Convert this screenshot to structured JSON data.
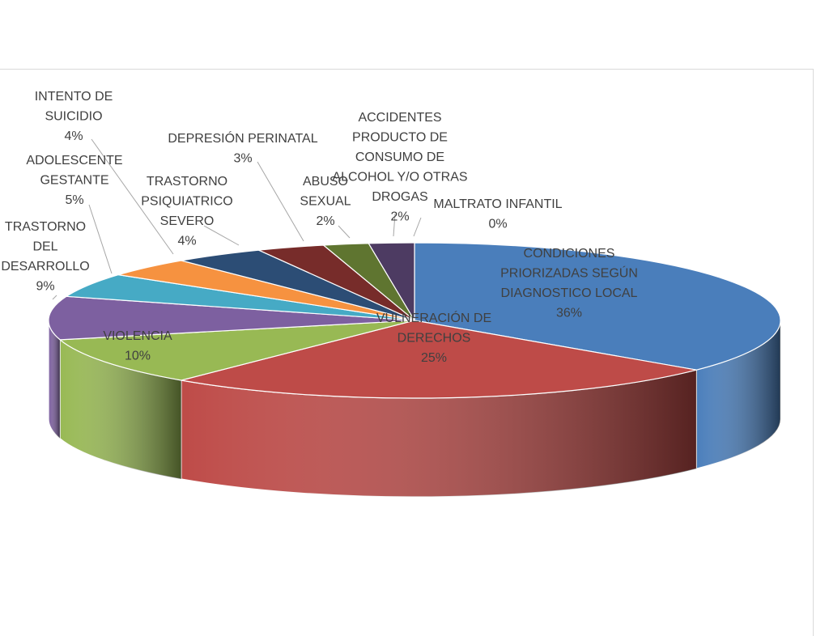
{
  "chart_data": {
    "type": "pie",
    "three_d": true,
    "title": "",
    "slices": [
      {
        "label": [
          "CONDICIONES",
          "PRIORIZADAS SEGÚN",
          "DIAGNOSTICO LOCAL"
        ],
        "pct_text": "36%",
        "value": 36,
        "color": "#4a7ebb"
      },
      {
        "label": [
          "VULNERACIÓN DE",
          "DERECHOS"
        ],
        "pct_text": "25%",
        "value": 25,
        "color": "#be4b48"
      },
      {
        "label": [
          "VIOLENCIA"
        ],
        "pct_text": "10%",
        "value": 10,
        "color": "#98b954"
      },
      {
        "label": [
          "TRASTORNO",
          "DEL",
          "DESARROLLO"
        ],
        "pct_text": "9%",
        "value": 9,
        "color": "#7d60a0"
      },
      {
        "label": [
          "ADOLESCENTE",
          "GESTANTE"
        ],
        "pct_text": "5%",
        "value": 5,
        "color": "#46aac5"
      },
      {
        "label": [
          "INTENTO DE",
          "SUICIDIO"
        ],
        "pct_text": "4%",
        "value": 4,
        "color": "#f69240"
      },
      {
        "label": [
          "TRASTORNO",
          "PSIQUIATRICO",
          "SEVERO"
        ],
        "pct_text": "4%",
        "value": 4,
        "color": "#2c4d75"
      },
      {
        "label": [
          "DEPRESIÓN PERINATAL"
        ],
        "pct_text": "3%",
        "value": 3,
        "color": "#772c2a"
      },
      {
        "label": [
          "ABUSO",
          "SEXUAL"
        ],
        "pct_text": "2%",
        "value": 2,
        "color": "#5f7530"
      },
      {
        "label": [
          "ACCIDENTES",
          "PRODUCTO DE",
          "CONSUMO DE",
          "ALCOHOL Y/O OTRAS",
          "DROGAS"
        ],
        "pct_text": "2%",
        "value": 2,
        "color": "#4d3b62"
      },
      {
        "label": [
          "MALTRATO INFANTIL"
        ],
        "pct_text": "0%",
        "value": 0,
        "color": "#276a7c"
      }
    ]
  }
}
